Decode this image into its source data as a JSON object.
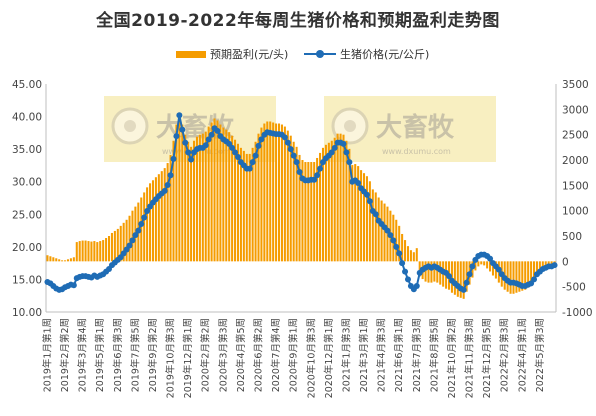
{
  "chart_data": {
    "type": "bar+line",
    "title": "全国2019-2022年每周生猪价格和预期盈利走势图",
    "legend": [
      "预期盈利(元/头)",
      "生猪价格(元/公斤)"
    ],
    "legend_placement": "top-center",
    "watermark": [
      "大畜牧",
      "www.dxumu.com"
    ],
    "colors": {
      "bar": "#f59c00",
      "line": "#1f6cb5"
    },
    "left_axis": {
      "ylim": [
        10,
        45
      ],
      "ticks": [
        "45.00",
        "40.00",
        "35.00",
        "30.00",
        "25.00",
        "20.00",
        "15.00",
        "10.00"
      ]
    },
    "right_axis": {
      "ylim": [
        -1000,
        3500
      ],
      "ticks": [
        "3500",
        "3000",
        "2500",
        "2000",
        "1500",
        "1000",
        "500",
        "0",
        "-500",
        "-1000"
      ]
    },
    "x_tick_labels": [
      "2019年1月第1周",
      "2019年2月第2周",
      "2019年3月第4周",
      "2019年5月第1周",
      "2019年6月第3周",
      "2019年7月第5周",
      "2019年9月第2周",
      "2019年10月第3周",
      "2019年12月第1周",
      "2020年2月第2周",
      "2020年3月第3周",
      "2020年4月第5周",
      "2020年6月第2周",
      "2020年7月第4周",
      "2020年9月第1周",
      "2020年10月第3周",
      "2020年12月第1周",
      "2021年1月第3周",
      "2021年3月第1周",
      "2021年4月第3周",
      "2021年6月第1周",
      "2021年7月第3周",
      "2021年8月第5周",
      "2021年10月第2周",
      "2021年11月第3周",
      "2021年12月第5周",
      "2022年2月第3周",
      "2022年4月第1周",
      "2022年5月第3周"
    ],
    "price_series": {
      "name": "生猪价格(元/公斤)",
      "axis": "left",
      "values": [
        14.6,
        14.4,
        14.0,
        13.6,
        13.4,
        13.5,
        13.8,
        14.0,
        14.2,
        14.1,
        15.2,
        15.4,
        15.5,
        15.5,
        15.4,
        15.3,
        15.6,
        15.4,
        15.6,
        15.8,
        16.2,
        16.6,
        17.2,
        17.6,
        18.0,
        18.4,
        19.0,
        19.6,
        20.2,
        21.0,
        21.8,
        22.5,
        23.5,
        24.5,
        25.5,
        26.2,
        26.8,
        27.3,
        27.8,
        28.2,
        28.6,
        29.5,
        31.0,
        33.5,
        37.0,
        40.2,
        38.0,
        36.0,
        34.5,
        33.4,
        34.5,
        35.0,
        35.2,
        35.2,
        35.6,
        36.5,
        37.2,
        38.2,
        37.8,
        37.0,
        36.5,
        36.2,
        35.8,
        35.2,
        34.5,
        33.8,
        33.0,
        32.5,
        32.0,
        32.0,
        33.0,
        34.0,
        35.5,
        36.5,
        37.2,
        37.6,
        37.5,
        37.4,
        37.3,
        37.3,
        37.2,
        36.8,
        36.0,
        35.0,
        34.0,
        33.0,
        31.5,
        30.5,
        30.2,
        30.2,
        30.3,
        30.3,
        31.0,
        32.0,
        33.0,
        33.6,
        34.0,
        34.5,
        35.2,
        36.0,
        36.0,
        35.8,
        34.5,
        33.0,
        30.0,
        30.2,
        29.8,
        29.0,
        28.5,
        28.0,
        27.0,
        25.5,
        25.0,
        24.0,
        23.5,
        23.0,
        22.5,
        21.8,
        21.0,
        20.0,
        19.0,
        17.5,
        16.2,
        15.0,
        14.0,
        13.5,
        14.0,
        16.0,
        16.5,
        16.8,
        17.0,
        16.8,
        17.0,
        16.8,
        16.5,
        16.2,
        16.0,
        15.5,
        14.8,
        14.4,
        14.0,
        13.6,
        13.4,
        14.5,
        15.8,
        17.0,
        18.0,
        18.6,
        18.8,
        18.8,
        18.6,
        18.2,
        17.5,
        17.0,
        16.5,
        15.8,
        15.2,
        14.8,
        14.5,
        14.5,
        14.4,
        14.2,
        14.0,
        14.0,
        14.2,
        14.4,
        15.0,
        15.8,
        16.2,
        16.6,
        16.8,
        17.0,
        17.0,
        17.2
      ]
    },
    "profit_series": {
      "name": "预期盈利(元/头)",
      "axis": "right",
      "values": [
        120,
        100,
        80,
        60,
        40,
        20,
        20,
        40,
        60,
        80,
        380,
        400,
        410,
        410,
        400,
        390,
        400,
        380,
        400,
        420,
        460,
        500,
        560,
        600,
        640,
        700,
        760,
        820,
        900,
        1000,
        1080,
        1160,
        1260,
        1360,
        1460,
        1540,
        1600,
        1660,
        1720,
        1780,
        1840,
        1940,
        2100,
        2380,
        2700,
        2900,
        2700,
        2500,
        2360,
        2260,
        2380,
        2460,
        2500,
        2520,
        2560,
        2660,
        2740,
        2820,
        2780,
        2700,
        2640,
        2600,
        2550,
        2480,
        2400,
        2320,
        2240,
        2180,
        2120,
        2120,
        2240,
        2360,
        2520,
        2640,
        2720,
        2760,
        2760,
        2740,
        2720,
        2720,
        2700,
        2660,
        2580,
        2480,
        2360,
        2260,
        2100,
        2000,
        1960,
        1960,
        1960,
        1960,
        2040,
        2140,
        2240,
        2300,
        2340,
        2380,
        2440,
        2520,
        2520,
        2500,
        2380,
        2220,
        1900,
        1920,
        1880,
        1800,
        1740,
        1680,
        1580,
        1420,
        1360,
        1260,
        1200,
        1140,
        1080,
        1000,
        920,
        820,
        700,
        540,
        420,
        300,
        220,
        180,
        260,
        -300,
        -350,
        -400,
        -420,
        -420,
        -400,
        -420,
        -460,
        -500,
        -540,
        -560,
        -620,
        -660,
        -700,
        -720,
        -740,
        -600,
        -460,
        -320,
        -180,
        -100,
        -60,
        -80,
        -140,
        -200,
        -280,
        -340,
        -420,
        -500,
        -560,
        -600,
        -640,
        -640,
        -620,
        -600,
        -580,
        -560,
        -520,
        -460,
        -380,
        -280,
        -200,
        -160,
        -120,
        -100,
        -100,
        -60
      ]
    },
    "grid": false
  }
}
